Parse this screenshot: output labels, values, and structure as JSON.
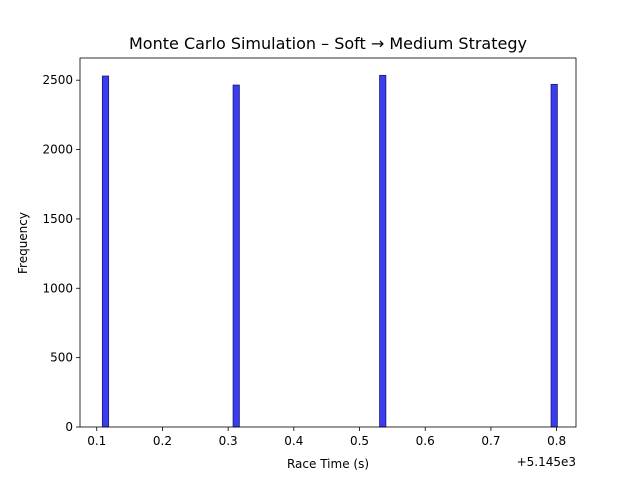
{
  "chart_data": {
    "type": "bar",
    "title": "Monte Carlo Simulation – Soft → Medium Strategy",
    "xlabel": "Race Time (s)",
    "ylabel": "Frequency",
    "x_offset_label": "+5.145e3",
    "xlim": [
      0.0745,
      0.8295
    ],
    "ylim": [
      0,
      2660
    ],
    "x_ticks": [
      0.1,
      0.2,
      0.3,
      0.4,
      0.5,
      0.6,
      0.7,
      0.8
    ],
    "x_tick_labels": [
      "0.1",
      "0.2",
      "0.3",
      "0.4",
      "0.5",
      "0.6",
      "0.7",
      "0.8"
    ],
    "y_ticks": [
      0,
      500,
      1000,
      1500,
      2000,
      2500
    ],
    "y_tick_labels": [
      "0",
      "500",
      "1000",
      "1500",
      "2000",
      "2500"
    ],
    "bin_width": 0.0096,
    "bars": [
      {
        "x_left": 0.1085,
        "value": 2530
      },
      {
        "x_left": 0.3075,
        "value": 2465
      },
      {
        "x_left": 0.5305,
        "value": 2535
      },
      {
        "x_left": 0.7915,
        "value": 2470
      }
    ],
    "bar_color": "#3b3bf0",
    "bar_edge_color": "#1a1a6e",
    "grid": false,
    "legend": "none"
  }
}
